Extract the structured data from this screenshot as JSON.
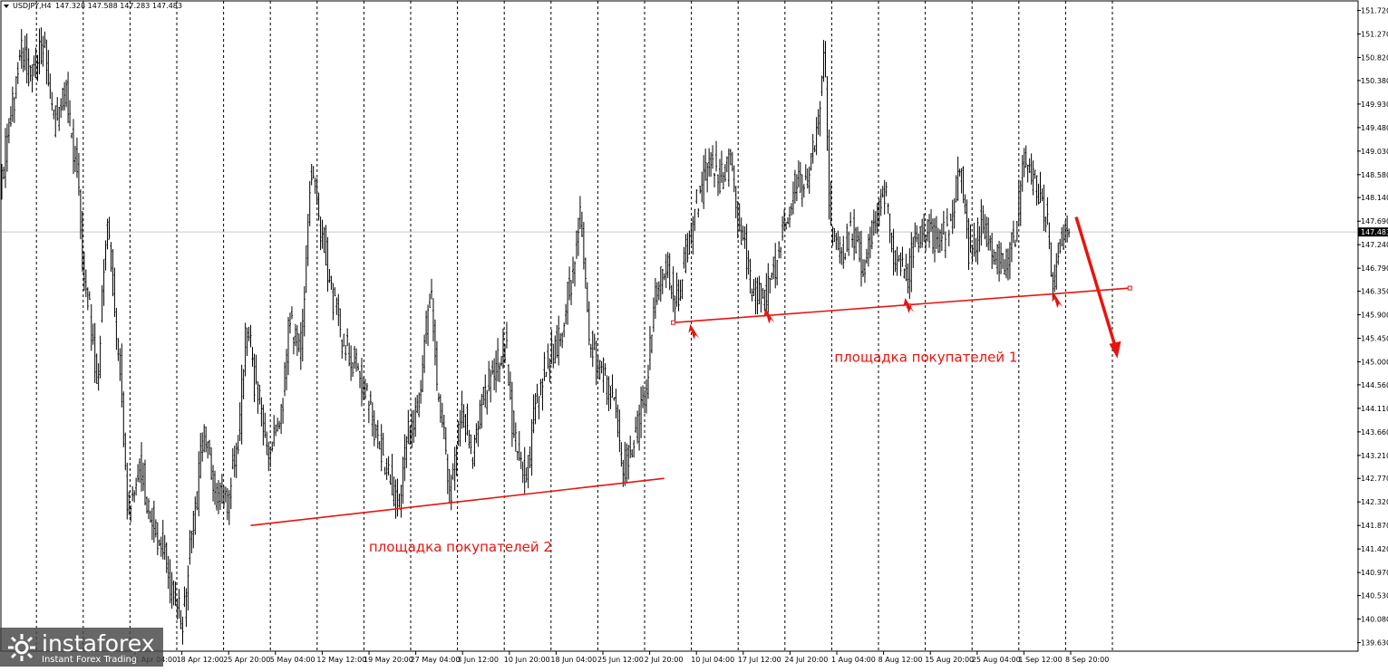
{
  "header": {
    "symbol_label": "USDJPY,H4",
    "ohlc": "147.328 147.588 147.283 147.483"
  },
  "colors": {
    "annotation": "#e8140f",
    "bars": "#000000",
    "grid": "#000000",
    "price_line": "#c8c8c8"
  },
  "brand": {
    "name": "instaforex",
    "tagline": "Instant Forex Trading",
    "icon": "instaforex-logo-icon"
  },
  "chart_data": {
    "type": "ohlc",
    "title": "",
    "xlabel": "",
    "ylabel": "",
    "grid": true,
    "ylim": [
      139.5,
      151.92
    ],
    "current_price": "147.483",
    "y_ticks": [
      "151.720",
      "151.270",
      "150.820",
      "150.380",
      "149.930",
      "149.480",
      "149.030",
      "148.580",
      "148.140",
      "147.690",
      "147.240",
      "146.790",
      "146.350",
      "145.900",
      "145.450",
      "145.000",
      "144.560",
      "144.110",
      "143.660",
      "143.210",
      "142.770",
      "142.320",
      "141.870",
      "141.420",
      "140.970",
      "140.530",
      "140.080",
      "139.630"
    ],
    "x_ticks": [
      "11 Apr 04:00",
      "18 Apr 12:00",
      "25 Apr 20:00",
      "5 May 04:00",
      "12 May 12:00",
      "19 May 20:00",
      "27 May 04:00",
      "3 Jun 12:00",
      "10 Jun 20:00",
      "18 Jun 04:00",
      "25 Jun 12:00",
      "2 Jul 20:00",
      "10 Jul 04:00",
      "17 Jul 12:00",
      "24 Jul 20:00",
      "1 Aug 04:00",
      "8 Aug 12:00",
      "15 Aug 20:00",
      "25 Aug 04:00",
      "1 Sep 12:00",
      "8 Sep 20:00"
    ],
    "price_path": [
      {
        "i": 0,
        "p": 148.3
      },
      {
        "i": 6,
        "p": 149.8
      },
      {
        "i": 12,
        "p": 150.9
      },
      {
        "i": 18,
        "p": 150.5
      },
      {
        "i": 24,
        "p": 151.0
      },
      {
        "i": 30,
        "p": 149.6
      },
      {
        "i": 36,
        "p": 150.2
      },
      {
        "i": 42,
        "p": 148.9
      },
      {
        "i": 48,
        "p": 146.4
      },
      {
        "i": 54,
        "p": 144.8
      },
      {
        "i": 60,
        "p": 147.6
      },
      {
        "i": 66,
        "p": 145.2
      },
      {
        "i": 72,
        "p": 142.2
      },
      {
        "i": 78,
        "p": 143.1
      },
      {
        "i": 84,
        "p": 142.0
      },
      {
        "i": 90,
        "p": 141.5
      },
      {
        "i": 96,
        "p": 140.6
      },
      {
        "i": 102,
        "p": 140.1
      },
      {
        "i": 108,
        "p": 142.0
      },
      {
        "i": 114,
        "p": 143.7
      },
      {
        "i": 120,
        "p": 142.5
      },
      {
        "i": 126,
        "p": 142.3
      },
      {
        "i": 132,
        "p": 143.3
      },
      {
        "i": 138,
        "p": 145.6
      },
      {
        "i": 144,
        "p": 144.3
      },
      {
        "i": 150,
        "p": 143.2
      },
      {
        "i": 156,
        "p": 143.8
      },
      {
        "i": 162,
        "p": 145.7
      },
      {
        "i": 168,
        "p": 145.3
      },
      {
        "i": 174,
        "p": 148.7
      },
      {
        "i": 180,
        "p": 147.4
      },
      {
        "i": 186,
        "p": 146.2
      },
      {
        "i": 192,
        "p": 145.4
      },
      {
        "i": 198,
        "p": 145.0
      },
      {
        "i": 204,
        "p": 144.4
      },
      {
        "i": 210,
        "p": 143.6
      },
      {
        "i": 216,
        "p": 143.0
      },
      {
        "i": 222,
        "p": 142.2
      },
      {
        "i": 228,
        "p": 143.6
      },
      {
        "i": 234,
        "p": 144.3
      },
      {
        "i": 240,
        "p": 146.3
      },
      {
        "i": 246,
        "p": 143.9
      },
      {
        "i": 252,
        "p": 142.6
      },
      {
        "i": 258,
        "p": 144.1
      },
      {
        "i": 264,
        "p": 143.2
      },
      {
        "i": 270,
        "p": 144.3
      },
      {
        "i": 276,
        "p": 144.9
      },
      {
        "i": 282,
        "p": 145.3
      },
      {
        "i": 288,
        "p": 143.4
      },
      {
        "i": 294,
        "p": 142.9
      },
      {
        "i": 300,
        "p": 144.3
      },
      {
        "i": 306,
        "p": 145.1
      },
      {
        "i": 312,
        "p": 145.4
      },
      {
        "i": 318,
        "p": 146.4
      },
      {
        "i": 324,
        "p": 147.7
      },
      {
        "i": 330,
        "p": 145.3
      },
      {
        "i": 336,
        "p": 144.8
      },
      {
        "i": 342,
        "p": 144.3
      },
      {
        "i": 348,
        "p": 143.0
      },
      {
        "i": 354,
        "p": 143.5
      },
      {
        "i": 360,
        "p": 144.3
      },
      {
        "i": 366,
        "p": 146.3
      },
      {
        "i": 372,
        "p": 146.8
      },
      {
        "i": 378,
        "p": 146.2
      },
      {
        "i": 384,
        "p": 147.2
      },
      {
        "i": 390,
        "p": 148.1
      },
      {
        "i": 396,
        "p": 148.9
      },
      {
        "i": 402,
        "p": 148.5
      },
      {
        "i": 408,
        "p": 148.8
      },
      {
        "i": 414,
        "p": 147.5
      },
      {
        "i": 420,
        "p": 146.4
      },
      {
        "i": 426,
        "p": 146.2
      },
      {
        "i": 432,
        "p": 146.8
      },
      {
        "i": 438,
        "p": 147.6
      },
      {
        "i": 444,
        "p": 148.4
      },
      {
        "i": 450,
        "p": 148.3
      },
      {
        "i": 456,
        "p": 149.3
      },
      {
        "i": 460,
        "p": 150.7
      },
      {
        "i": 464,
        "p": 147.6
      },
      {
        "i": 470,
        "p": 147.1
      },
      {
        "i": 476,
        "p": 147.5
      },
      {
        "i": 482,
        "p": 146.9
      },
      {
        "i": 488,
        "p": 147.6
      },
      {
        "i": 494,
        "p": 148.3
      },
      {
        "i": 500,
        "p": 147.0
      },
      {
        "i": 506,
        "p": 146.6
      },
      {
        "i": 512,
        "p": 147.4
      },
      {
        "i": 518,
        "p": 147.6
      },
      {
        "i": 524,
        "p": 147.2
      },
      {
        "i": 530,
        "p": 147.6
      },
      {
        "i": 536,
        "p": 148.6
      },
      {
        "i": 542,
        "p": 147.0
      },
      {
        "i": 548,
        "p": 147.7
      },
      {
        "i": 554,
        "p": 147.1
      },
      {
        "i": 560,
        "p": 146.9
      },
      {
        "i": 566,
        "p": 147.3
      },
      {
        "i": 572,
        "p": 148.8
      },
      {
        "i": 578,
        "p": 148.4
      },
      {
        "i": 584,
        "p": 147.8
      },
      {
        "i": 588,
        "p": 146.4
      },
      {
        "i": 592,
        "p": 147.2
      },
      {
        "i": 596,
        "p": 147.48
      }
    ],
    "trendlines": [
      {
        "name": "площадка покупателей 2",
        "from": {
          "i": 139,
          "p": 141.87
        },
        "to": {
          "i": 370,
          "p": 142.77
        }
      },
      {
        "name": "площадка покупателей 1",
        "from": {
          "i": 375,
          "p": 145.75
        },
        "to": {
          "i": 630,
          "p": 146.41
        }
      }
    ],
    "annotations": [
      {
        "text": "площадка покупателей 2",
        "anchor": {
          "i": 205,
          "p": 141.37
        }
      },
      {
        "text": "площадка покупателей 1",
        "anchor": {
          "i": 465,
          "p": 145.0
        }
      }
    ],
    "markers": [
      {
        "type": "arrow-up",
        "at": {
          "i": 386,
          "p": 145.55
        }
      },
      {
        "type": "arrow-up",
        "at": {
          "i": 428,
          "p": 145.85
        }
      },
      {
        "type": "arrow-up",
        "at": {
          "i": 506,
          "p": 146.05
        }
      },
      {
        "type": "arrow-up",
        "at": {
          "i": 589,
          "p": 146.15
        }
      },
      {
        "type": "arrow-down",
        "from": {
          "i": 600,
          "p": 147.77
        },
        "to": {
          "i": 622,
          "p": 145.1
        }
      }
    ]
  }
}
